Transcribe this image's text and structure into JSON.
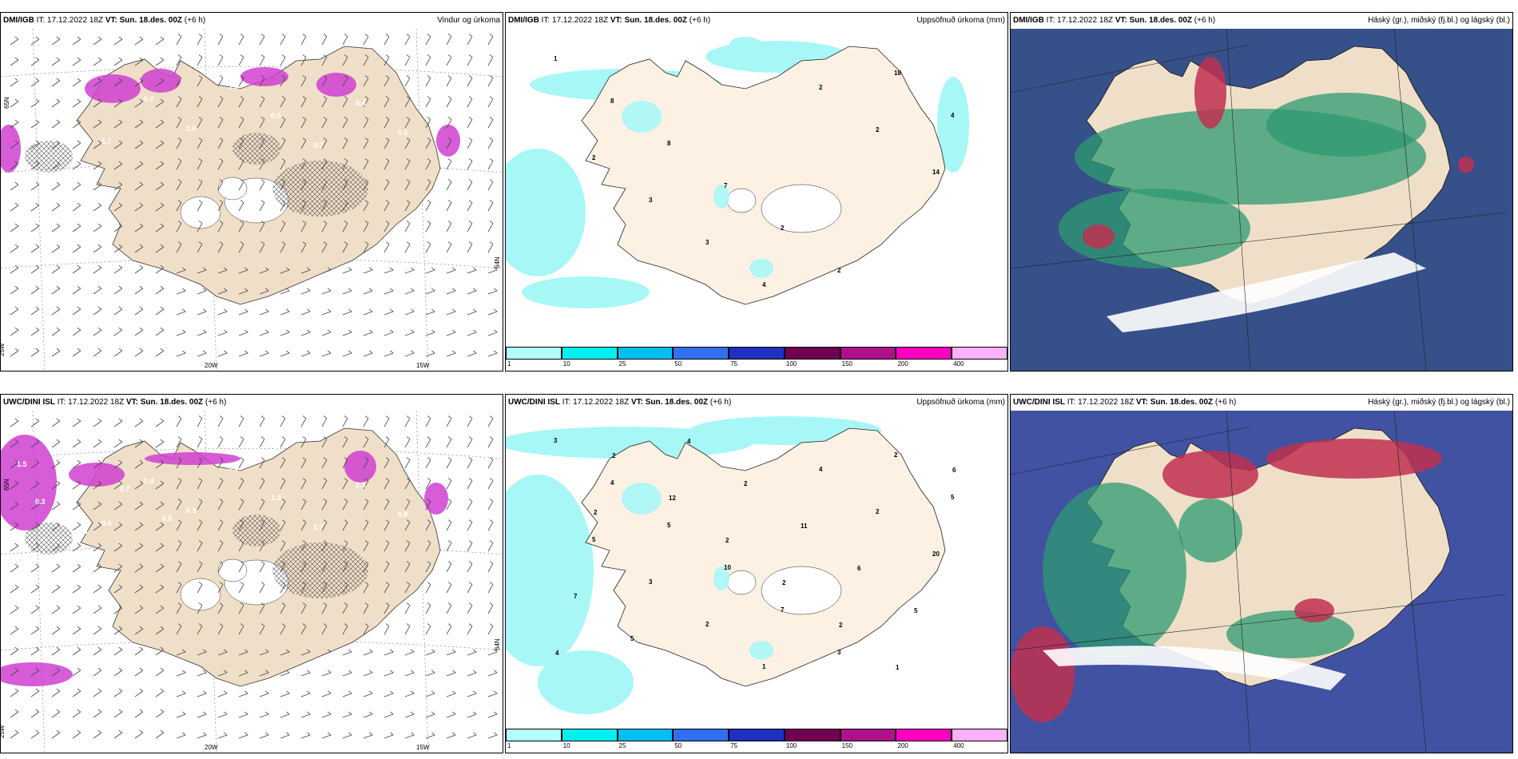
{
  "rows": [
    {
      "model": "DMI/IGB",
      "it": "IT: 17.12.2022 18Z",
      "vt": "VT: Sun. 18.des. 00Z",
      "lead": "(+6 h)",
      "panels": [
        {
          "type": "wind",
          "title": "Vindur og úrkoma"
        },
        {
          "type": "precip",
          "title": "Uppsöfnuð úrkoma (mm)"
        },
        {
          "type": "cloud",
          "title": "Háský (gr.), miðský (fj.bl.) og lágský (bl.)"
        }
      ],
      "precip_labels": [
        "1",
        "8",
        "8",
        "7",
        "2",
        "2",
        "18",
        "4",
        "2",
        "3",
        "3",
        "4",
        "2",
        "2",
        "14"
      ],
      "wind_labels": [
        "1.3",
        "0.5",
        "1.7",
        "0.7",
        "1.0",
        "1.0",
        "0.5",
        "0.7",
        "0.4",
        "0.5"
      ]
    },
    {
      "model": "UWC/DINI ISL",
      "it": "IT: 17.12.2022 18Z",
      "vt": "VT: Sun. 18.des. 00Z",
      "lead": "(+6 h)",
      "panels": [
        {
          "type": "wind",
          "title": ""
        },
        {
          "type": "precip",
          "title": "Uppsöfnuð úrkoma (mm)"
        },
        {
          "type": "cloud",
          "title": "Háský (gr.), miðský (fj.bl.) og lágský (bl.)"
        }
      ],
      "precip_labels": [
        "3",
        "4",
        "5",
        "10",
        "7",
        "3",
        "2",
        "5",
        "5",
        "3",
        "2",
        "1",
        "4",
        "2",
        "20",
        "7",
        "5",
        "4",
        "2",
        "11",
        "6",
        "5",
        "4",
        "2",
        "12",
        "2",
        "2",
        "2",
        "1",
        "6",
        "2"
      ],
      "wind_labels": [
        "1.5",
        "1.4",
        "0.4",
        "0.4",
        "0.3",
        "0.5",
        "1.3",
        "1.7",
        "2.3",
        "0.9",
        "0.5",
        "0.3",
        "0.6",
        "0.7",
        "0.5"
      ]
    }
  ],
  "axis_labels": {
    "lat_top": "65N",
    "lat_mid": "64N",
    "lon_left": "25W",
    "lon_20": "20W",
    "lon_15": "15W"
  },
  "colorbar": {
    "ticks": [
      "1",
      "10",
      "25",
      "50",
      "75",
      "100",
      "150",
      "200",
      "400"
    ],
    "colors": [
      "#b3ffff",
      "#00f0f0",
      "#00c0f0",
      "#3070f0",
      "#2030c0",
      "#700050",
      "#b0108a",
      "#ff00c0",
      "#ffb0ff"
    ]
  },
  "colors": {
    "land": "#f0dfc8",
    "land_precip": "#fdf1e3",
    "sea": "#ffffff",
    "precip_cyan": "#a8f7f7",
    "magenta": "#d040d0",
    "cloud_green": "#2e9a72",
    "cloud_blue": "#5555cc",
    "cloud_red": "#c03050"
  }
}
